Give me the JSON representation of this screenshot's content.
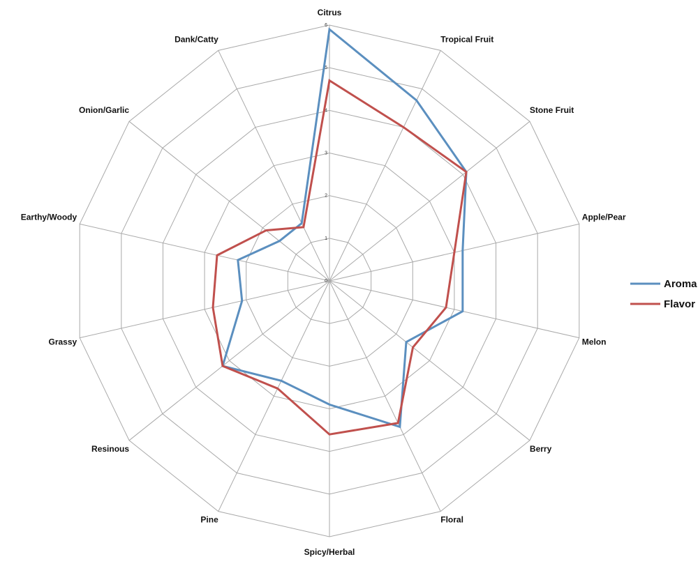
{
  "chart_data": {
    "type": "radar",
    "categories": [
      "Citrus",
      "Tropical Fruit",
      "Stone Fruit",
      "Apple/Pear",
      "Melon",
      "Berry",
      "Floral",
      "Spicy/Herbal",
      "Pine",
      "Resinous",
      "Grassy",
      "Earthy/Woody",
      "Onion/Garlic",
      "Dank/Catty"
    ],
    "rlim": [
      0,
      6
    ],
    "ticks": [
      "0",
      "1",
      "2",
      "3",
      "4",
      "5",
      "6"
    ],
    "grid": true,
    "legend_position": "right",
    "series": [
      {
        "name": "Aroma",
        "color": "#5b8fbf",
        "values": [
          5.9,
          4.7,
          4.1,
          3.2,
          3.2,
          2.3,
          3.8,
          2.9,
          2.6,
          3.2,
          2.1,
          2.2,
          1.5,
          1.5
        ]
      },
      {
        "name": "Flavor",
        "color": "#c0504d",
        "values": [
          4.7,
          4.0,
          4.1,
          3.0,
          2.8,
          2.5,
          3.7,
          3.6,
          2.8,
          3.2,
          2.8,
          2.7,
          1.9,
          1.4
        ]
      }
    ]
  }
}
